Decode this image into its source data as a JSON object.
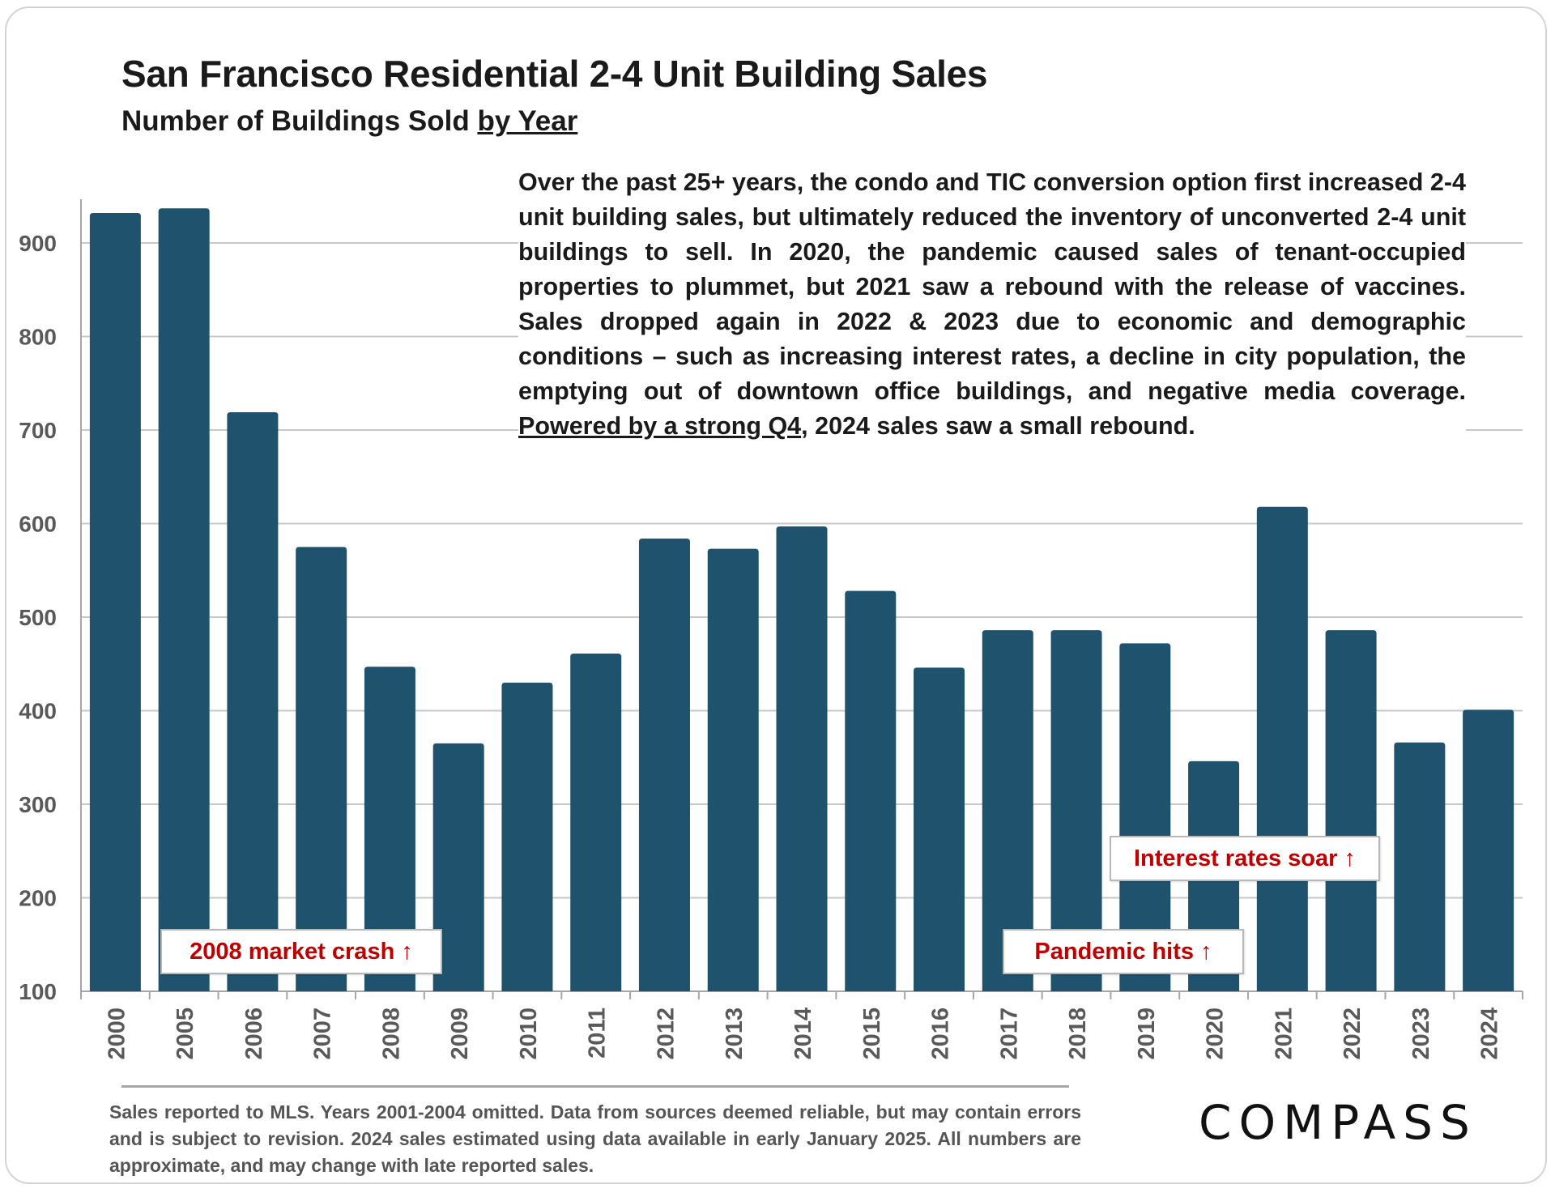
{
  "title": "San Francisco Residential 2-4 Unit Building Sales",
  "subtitle_prefix": "Number of Buildings Sold ",
  "subtitle_underlined": "by Year",
  "description": {
    "part1": "Over the past 25+ years, the condo and TIC conversion option first increased 2-4 unit building sales, but ultimately reduced the inventory of unconverted 2-4 unit buildings to sell. In 2020, the pandemic caused sales of tenant-occupied properties to plummet, but 2021 saw a rebound with the release of vaccines. Sales dropped again in 2022 & 2023 due to economic and demographic conditions – such as increasing interest rates, a decline in city population, the emptying out of downtown office buildings, and negative media coverage. ",
    "underlined": "Powered by a strong Q4",
    "part2": ", 2024 sales saw a small rebound."
  },
  "callouts": {
    "crash": "2008 market crash ↑",
    "pandemic": "Pandemic hits ↑",
    "rates": "Interest rates soar ↑"
  },
  "footer": "Sales reported to MLS. Years 2001-2004 omitted. Data from sources deemed reliable, but may contain errors and is subject to revision. 2024 sales estimated using data available in early January 2025. All numbers are approximate, and may change with late reported sales.",
  "logo": "COMPASS",
  "chart_data": {
    "type": "bar",
    "categories": [
      "2000",
      "2005",
      "2006",
      "2007",
      "2008",
      "2009",
      "2010",
      "2011",
      "2012",
      "2013",
      "2014",
      "2015",
      "2016",
      "2017",
      "2018",
      "2019",
      "2020",
      "2021",
      "2022",
      "2023",
      "2024"
    ],
    "values": [
      932,
      937,
      719,
      575,
      447,
      365,
      430,
      461,
      584,
      573,
      597,
      528,
      446,
      486,
      486,
      472,
      346,
      618,
      486,
      366,
      401
    ],
    "ylim": [
      100,
      950
    ],
    "yticks": [
      100,
      200,
      300,
      400,
      500,
      600,
      700,
      800,
      900
    ],
    "ytick_labels": [
      "100",
      "200",
      "300",
      "400",
      "500",
      "600",
      "700",
      "800",
      "900"
    ],
    "grid": true,
    "bar_color": "#1f536d",
    "xlabel": "",
    "ylabel": ""
  }
}
